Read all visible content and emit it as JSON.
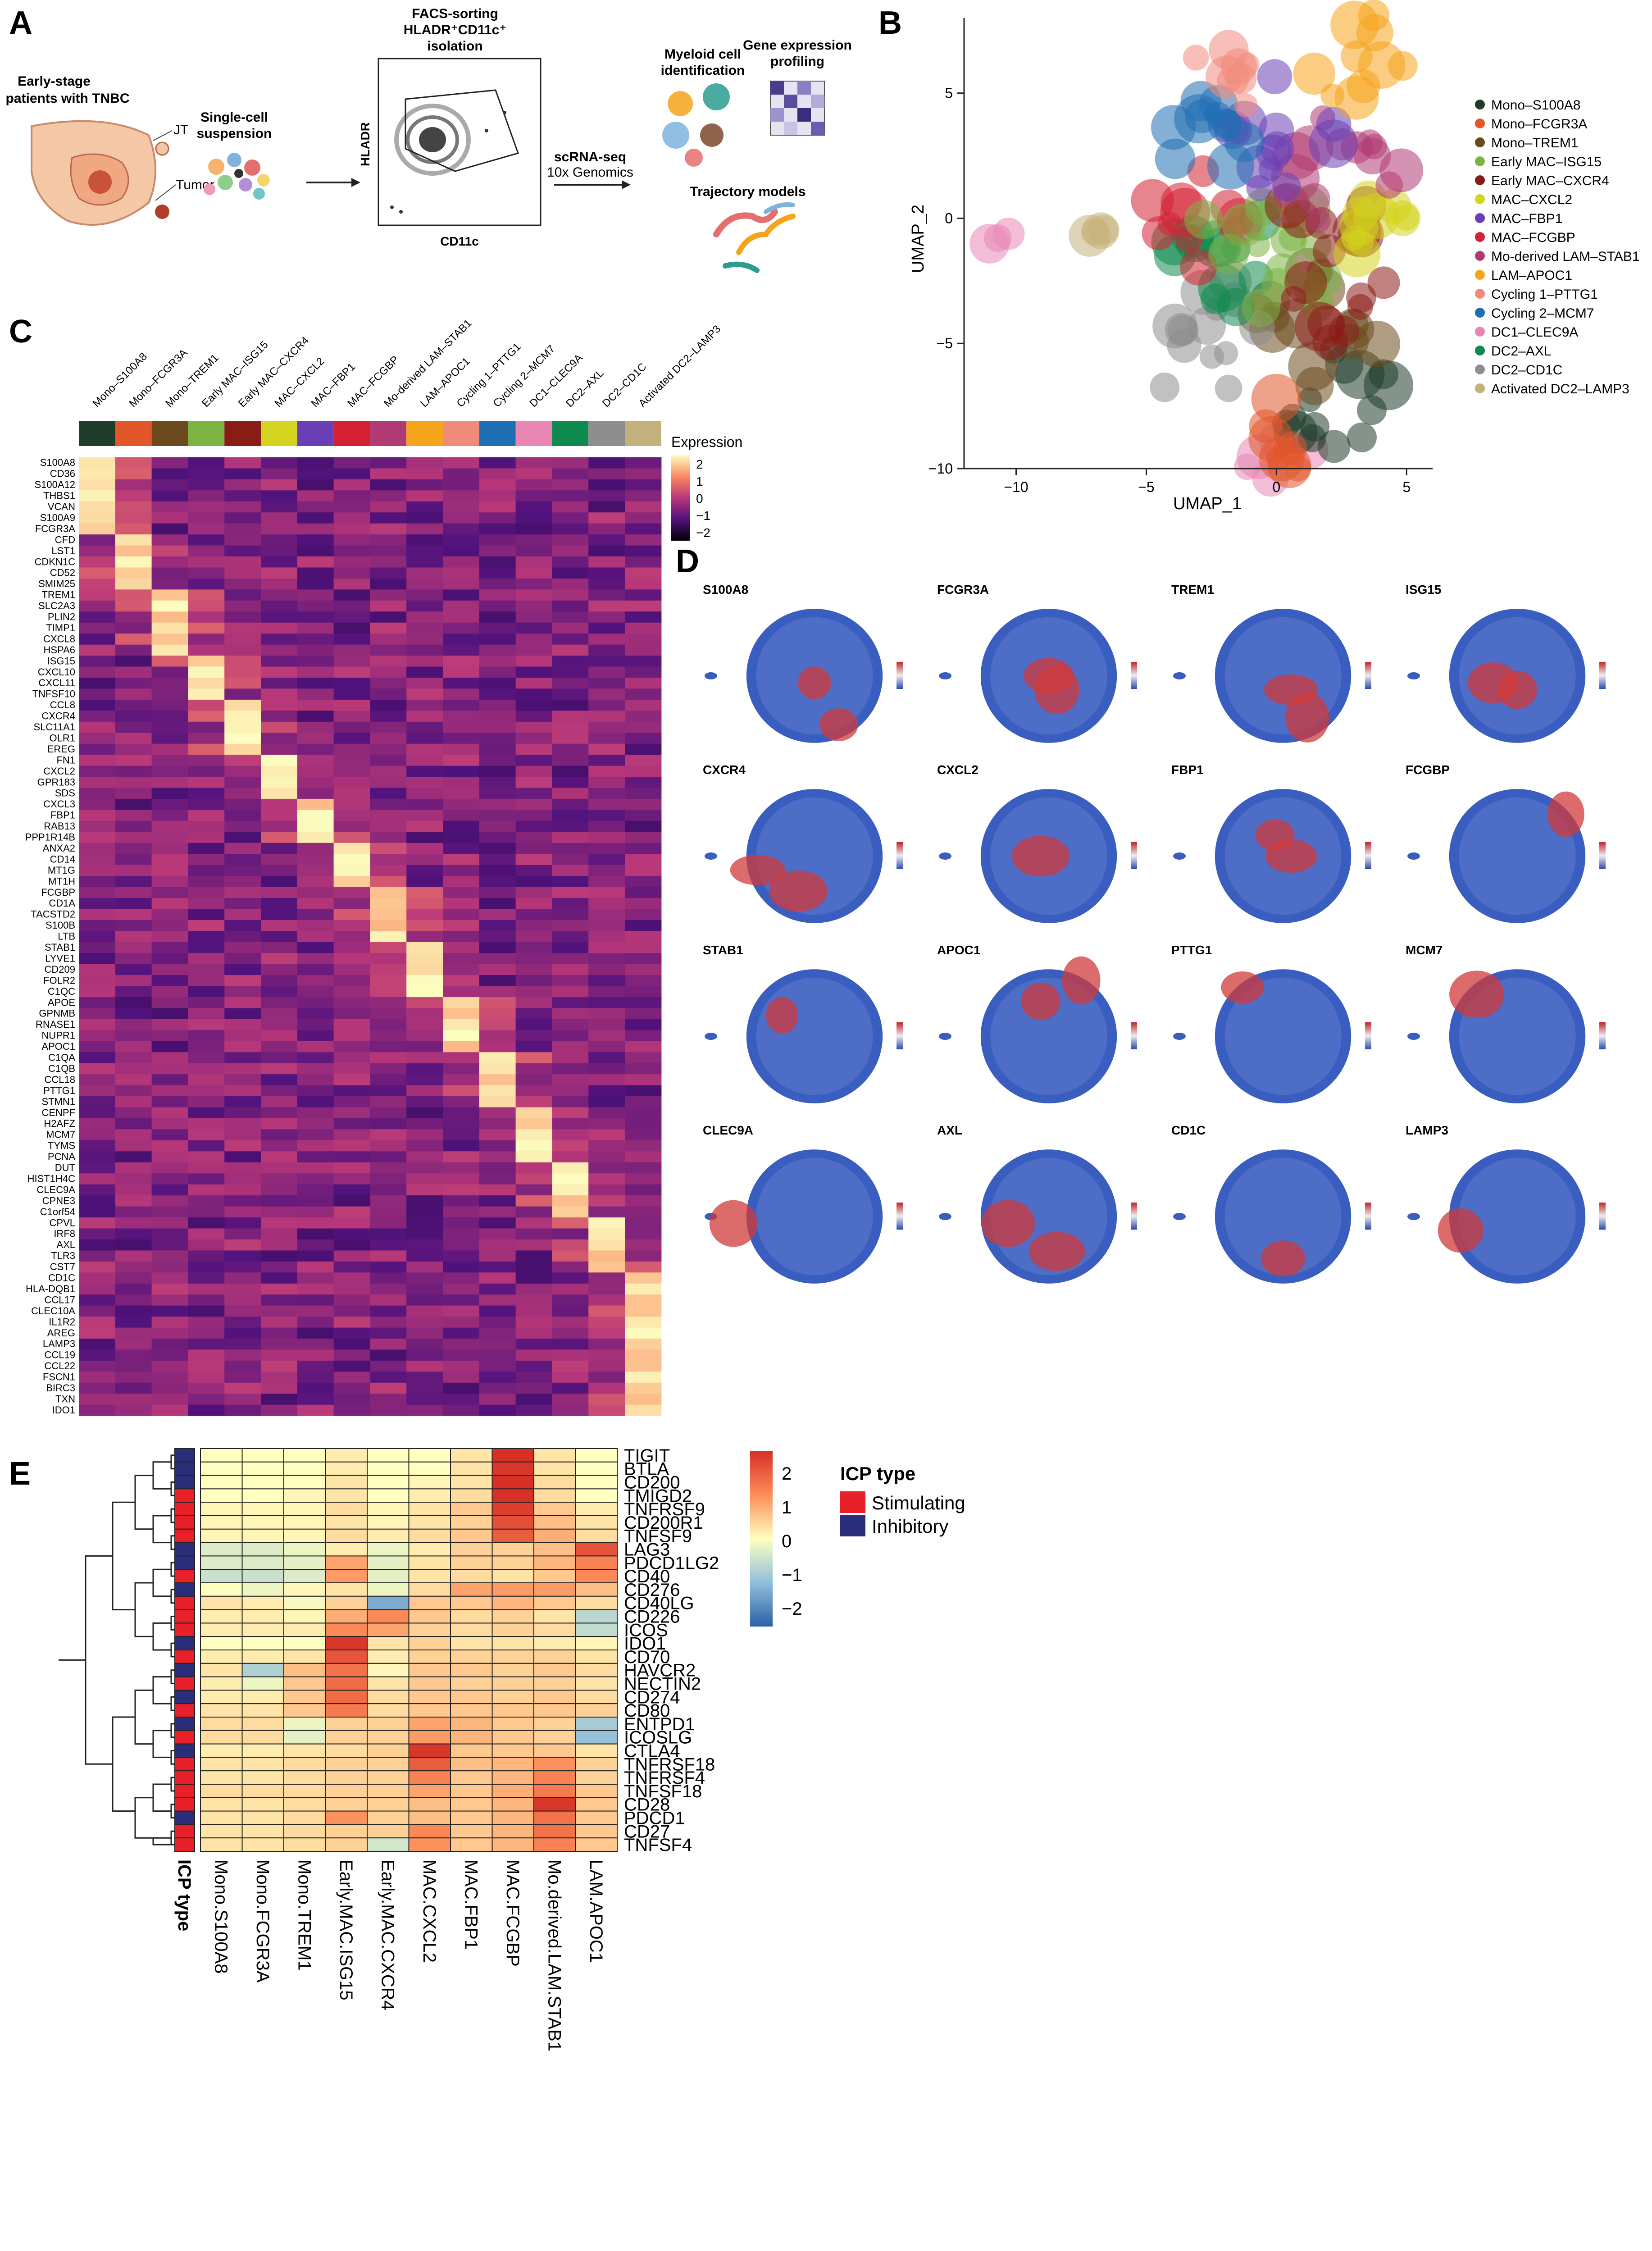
{
  "panels": {
    "A": {
      "letter": "A",
      "patient_label": [
        "Early-stage",
        "patients with TNBC"
      ],
      "jt_label": "JT",
      "tumor_label": "Tumor",
      "suspension_label": [
        "Single-cell",
        "suspension"
      ],
      "facs_label": [
        "FACS-sorting",
        "HLADR⁺CD11c⁺",
        "isolation"
      ],
      "facs_yaxis": "HLADR",
      "facs_xaxis": "CD11c",
      "scrna_label": [
        "scRNA-seq",
        "10x Genomics"
      ],
      "myeloid_label": [
        "Myeloid cell",
        "identification"
      ],
      "gene_label": [
        "Gene expression",
        "profiling"
      ],
      "trajectory_label": "Trajectory models"
    },
    "B": {
      "letter": "B",
      "xlabel": "UMAP_1",
      "ylabel": "UMAP_2",
      "x_ticks": [
        "−10",
        "−5",
        "0",
        "5"
      ],
      "y_ticks": [
        "5",
        "0",
        "−5",
        "−10"
      ],
      "legend": [
        {
          "name": "Mono–S100A8",
          "color": "#1f3d2a"
        },
        {
          "name": "Mono–FCGR3A",
          "color": "#e2562a"
        },
        {
          "name": "Mono–TREM1",
          "color": "#6b4a1d"
        },
        {
          "name": "Early MAC–ISG15",
          "color": "#7cb342"
        },
        {
          "name": "Early MAC–CXCR4",
          "color": "#8a1c16"
        },
        {
          "name": "MAC–CXCL2",
          "color": "#d4d41e"
        },
        {
          "name": "MAC–FBP1",
          "color": "#6a3fb5"
        },
        {
          "name": "MAC–FCGBP",
          "color": "#d42033"
        },
        {
          "name": "Mo-derived LAM–STAB1",
          "color": "#b03a73"
        },
        {
          "name": "LAM–APOC1",
          "color": "#f5a41c"
        },
        {
          "name": "Cycling 1–PTTG1",
          "color": "#f08b7c"
        },
        {
          "name": "Cycling 2–MCM7",
          "color": "#1f6fb5"
        },
        {
          "name": "DC1–CLEC9A",
          "color": "#e887b4"
        },
        {
          "name": "DC2–AXL",
          "color": "#0e8a4f"
        },
        {
          "name": "DC2–CD1C",
          "color": "#8e8e8e"
        },
        {
          "name": "Activated DC2–LAMP3",
          "color": "#c4b07a"
        }
      ]
    },
    "C": {
      "letter": "C",
      "columns": [
        "Mono–S100A8",
        "Mono–FCGR3A",
        "Mono–TREM1",
        "Early MAC–ISG15",
        "Early MAC–CXCR4",
        "MAC–CXCL2",
        "MAC–FBP1",
        "MAC–FCGBP",
        "Mo-derived LAM–STAB1",
        "LAM–APOC1",
        "Cycling 1–PTTG1",
        "Cycling 2–MCM7",
        "DC1–CLEC9A",
        "DC2–AXL",
        "DC2–CD1C",
        "Activated DC2–LAMP3"
      ],
      "genes": [
        "S100A8",
        "CD36",
        "S100A12",
        "THBS1",
        "VCAN",
        "S100A9",
        "FCGR3A",
        "CFD",
        "LST1",
        "CDKN1C",
        "CD52",
        "SMIM25",
        "TREM1",
        "SLC2A3",
        "PLIN2",
        "TIMP1",
        "CXCL8",
        "HSPA6",
        "ISG15",
        "CXCL10",
        "CXCL11",
        "TNFSF10",
        "CCL8",
        "CXCR4",
        "SLC11A1",
        "OLR1",
        "EREG",
        "FN1",
        "CXCL2",
        "GPR183",
        "SDS",
        "CXCL3",
        "FBP1",
        "RAB13",
        "PPP1R14B",
        "ANXA2",
        "CD14",
        "MT1G",
        "MT1H",
        "FCGBP",
        "CD1A",
        "TACSTD2",
        "S100B",
        "LTB",
        "STAB1",
        "LYVE1",
        "CD209",
        "FOLR2",
        "C1QC",
        "APOE",
        "GPNMB",
        "RNASE1",
        "NUPR1",
        "APOC1",
        "C1QA",
        "C1QB",
        "CCL18",
        "PTTG1",
        "STMN1",
        "CENPF",
        "H2AFZ",
        "MCM7",
        "TYMS",
        "PCNA",
        "DUT",
        "HIST1H4C",
        "CLEC9A",
        "CPNE3",
        "C1orf54",
        "CPVL",
        "IRF8",
        "AXL",
        "TLR3",
        "CST7",
        "CD1C",
        "HLA-DQB1",
        "CCL17",
        "CLEC10A",
        "IL1R2",
        "AREG",
        "LAMP3",
        "CCL19",
        "CCL22",
        "FSCN1",
        "BIRC3",
        "TXN",
        "IDO1"
      ],
      "legend_title": "Expression",
      "legend_ticks": [
        "2",
        "1",
        "0",
        "−1",
        "−2"
      ]
    },
    "D": {
      "letter": "D",
      "genes": [
        "S100A8",
        "FCGR3A",
        "TREM1",
        "ISG15",
        "CXCR4",
        "CXCL2",
        "FBP1",
        "FCGBP",
        "STAB1",
        "APOC1",
        "PTTG1",
        "MCM7",
        "CLEC9A",
        "AXL",
        "CD1C",
        "LAMP3"
      ]
    },
    "E": {
      "letter": "E",
      "genes": [
        "TIGIT",
        "BTLA",
        "CD200",
        "TMIGD2",
        "TNFRSF9",
        "CD200R1",
        "TNFSF9",
        "LAG3",
        "PDCD1LG2",
        "CD40",
        "CD276",
        "CD40LG",
        "CD226",
        "ICOS",
        "IDO1",
        "CD70",
        "HAVCR2",
        "NECTIN2",
        "CD274",
        "CD80",
        "ENTPD1",
        "ICOSLG",
        "CTLA4",
        "TNFRSF18",
        "TNFRSF4",
        "TNFSF18",
        "CD28",
        "PDCD1",
        "CD27",
        "TNFSF4"
      ],
      "icp_types": [
        "I",
        "I",
        "I",
        "S",
        "S",
        "S",
        "S",
        "I",
        "I",
        "S",
        "I",
        "S",
        "S",
        "S",
        "I",
        "S",
        "I",
        "S",
        "I",
        "S",
        "I",
        "S",
        "I",
        "S",
        "S",
        "S",
        "S",
        "I",
        "S",
        "S"
      ],
      "columns": [
        "Mono.S100A8",
        "Mono.FCGR3A",
        "Mono.TREM1",
        "Early.MAC.ISG15",
        "Early.MAC.CXCR4",
        "MAC.CXCL2",
        "MAC.FBP1",
        "MAC.FCGBP",
        "Mo.derived.LAM.STAB1",
        "LAM.APOC1"
      ],
      "icp_column_label": "ICP type",
      "scale_ticks": [
        "2",
        "1",
        "0",
        "−1",
        "−2"
      ],
      "legend_title": "ICP type",
      "legend_items": [
        {
          "label": "Stimulating",
          "color": "#e8202a"
        },
        {
          "label": "Inhibitory",
          "color": "#2a2e7a"
        }
      ]
    }
  },
  "chart_data": [
    {
      "type": "heatmap",
      "panel": "E",
      "rows": [
        "TIGIT",
        "BTLA",
        "CD200",
        "TMIGD2",
        "TNFRSF9",
        "CD200R1",
        "TNFSF9",
        "LAG3",
        "PDCD1LG2",
        "CD40",
        "CD276",
        "CD40LG",
        "CD226",
        "ICOS",
        "IDO1",
        "CD70",
        "HAVCR2",
        "NECTIN2",
        "CD274",
        "CD80",
        "ENTPD1",
        "ICOSLG",
        "CTLA4",
        "TNFRSF18",
        "TNFRSF4",
        "TNFSF18",
        "CD28",
        "PDCD1",
        "CD27",
        "TNFSF4"
      ],
      "columns": [
        "Mono.S100A8",
        "Mono.FCGR3A",
        "Mono.TREM1",
        "Early.MAC.ISG15",
        "Early.MAC.CXCR4",
        "MAC.CXCL2",
        "MAC.FBP1",
        "MAC.FCGBP",
        "Mo.derived.LAM.STAB1",
        "LAM.APOC1"
      ],
      "values": [
        [
          0,
          0,
          0,
          0.2,
          0,
          0,
          0.3,
          2.5,
          0.3,
          0
        ],
        [
          0,
          0,
          0,
          0.2,
          0,
          0,
          0.3,
          2.4,
          0.3,
          0
        ],
        [
          0,
          0,
          0,
          0.3,
          0,
          0.1,
          0.3,
          2.6,
          0.4,
          0
        ],
        [
          0,
          0,
          0.1,
          0.3,
          0,
          0.2,
          0.4,
          2.5,
          0.4,
          0
        ],
        [
          0.1,
          0.1,
          0.1,
          0.4,
          0.1,
          0.3,
          0.6,
          2.3,
          0.6,
          0.2
        ],
        [
          0.1,
          0.1,
          0.1,
          0.3,
          0.1,
          0.3,
          0.5,
          2.1,
          0.7,
          0.3
        ],
        [
          0.1,
          0.1,
          0.1,
          0.4,
          0.2,
          0.4,
          0.6,
          1.9,
          0.9,
          0.4
        ],
        [
          -0.4,
          -0.4,
          -0.2,
          0.2,
          -0.2,
          0.2,
          0.5,
          0.5,
          0.7,
          2.0
        ],
        [
          -0.4,
          -0.4,
          -0.3,
          1.0,
          -0.3,
          0.3,
          0.5,
          0.5,
          0.8,
          1.4
        ],
        [
          -0.6,
          -0.6,
          -0.4,
          1.1,
          -0.3,
          0.3,
          0.4,
          0.3,
          0.6,
          1.3
        ],
        [
          0,
          -0.2,
          0.1,
          0.3,
          -0.2,
          0.4,
          1.0,
          1.1,
          1.1,
          0.7
        ],
        [
          0.3,
          0.2,
          -0.1,
          0.5,
          -1.5,
          0.6,
          0.6,
          0.8,
          0.6,
          0.4
        ],
        [
          0.2,
          0.2,
          0.1,
          0.9,
          1.3,
          0.6,
          0.4,
          0.5,
          0.3,
          -0.8
        ],
        [
          0.2,
          0.2,
          0.2,
          1.3,
          1.0,
          0.5,
          0.4,
          0.5,
          0.4,
          -0.7
        ],
        [
          0,
          0,
          0,
          2.4,
          0.3,
          0.5,
          0.3,
          0.3,
          0.2,
          0.1
        ],
        [
          0.2,
          0.2,
          0.3,
          2.0,
          0.2,
          0.5,
          0.5,
          0.5,
          0.5,
          0.3
        ],
        [
          0.3,
          -0.9,
          0.7,
          1.6,
          0.1,
          0.6,
          0.6,
          0.5,
          0.6,
          0.4
        ],
        [
          0.2,
          -0.2,
          0.6,
          1.7,
          0.3,
          0.6,
          0.5,
          0.5,
          0.5,
          0.3
        ],
        [
          0.2,
          0.2,
          0.6,
          1.7,
          0.4,
          0.6,
          0.6,
          0.5,
          0.6,
          0.4
        ],
        [
          0.3,
          0.3,
          0.6,
          1.5,
          0.4,
          0.6,
          0.6,
          0.6,
          0.6,
          0.5
        ],
        [
          0.4,
          0.4,
          -0.2,
          0.5,
          0.5,
          1.0,
          0.8,
          0.6,
          0.5,
          -1.0
        ],
        [
          0.4,
          0.4,
          -0.3,
          0.5,
          0.5,
          1.1,
          0.8,
          0.6,
          0.5,
          -1.2
        ],
        [
          0.2,
          0.2,
          0.3,
          0.4,
          0.5,
          2.4,
          0.6,
          0.6,
          0.6,
          0.3
        ],
        [
          0.3,
          0.3,
          0.4,
          0.5,
          0.5,
          1.9,
          0.7,
          0.8,
          1.2,
          0.5
        ],
        [
          0.3,
          0.3,
          0.4,
          0.5,
          0.5,
          1.4,
          0.6,
          0.8,
          1.4,
          0.5
        ],
        [
          0.4,
          0.4,
          0.4,
          0.5,
          0.5,
          1.0,
          0.6,
          0.9,
          1.5,
          0.6
        ],
        [
          0.3,
          0.3,
          0.4,
          0.5,
          0.5,
          0.7,
          0.6,
          0.8,
          2.4,
          0.6
        ],
        [
          0.3,
          0.3,
          0.4,
          1.2,
          0.5,
          0.7,
          0.6,
          0.8,
          1.6,
          0.6
        ],
        [
          0.3,
          0.3,
          0.4,
          0.5,
          0.5,
          1.3,
          0.6,
          0.8,
          1.6,
          0.6
        ],
        [
          0.3,
          0.3,
          0.4,
          0.5,
          -0.5,
          1.2,
          0.6,
          0.8,
          1.4,
          0.6
        ]
      ],
      "zlim": [
        -2.5,
        2.5
      ]
    }
  ]
}
